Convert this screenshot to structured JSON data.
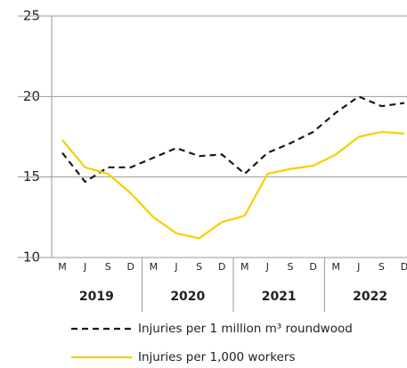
{
  "chart_data": {
    "type": "line",
    "categories": [
      "M",
      "J",
      "S",
      "D",
      "M",
      "J",
      "S",
      "D",
      "M",
      "J",
      "S",
      "D",
      "M",
      "J",
      "S",
      "D"
    ],
    "groups": [
      "2019",
      "2020",
      "2021",
      "2022"
    ],
    "series": [
      {
        "name": "Injuries per 1 million m³ roundwood",
        "color": "#1a1a1a",
        "dash": true,
        "values": [
          16.5,
          14.7,
          15.6,
          15.6,
          16.2,
          16.8,
          16.3,
          16.4,
          15.2,
          16.5,
          17.1,
          17.8,
          19.0,
          20.0,
          19.4,
          19.6
        ]
      },
      {
        "name": "Injuries per 1,000 workers",
        "color": "#f5cf00",
        "dash": false,
        "values": [
          17.3,
          15.6,
          15.2,
          14.0,
          12.5,
          11.5,
          11.2,
          12.2,
          12.6,
          15.2,
          15.5,
          15.7,
          16.4,
          17.5,
          17.8,
          17.7
        ]
      }
    ],
    "ylim": [
      10,
      25
    ],
    "yticks": [
      10,
      15,
      20,
      25
    ],
    "grid": true,
    "legend": "bottom"
  }
}
